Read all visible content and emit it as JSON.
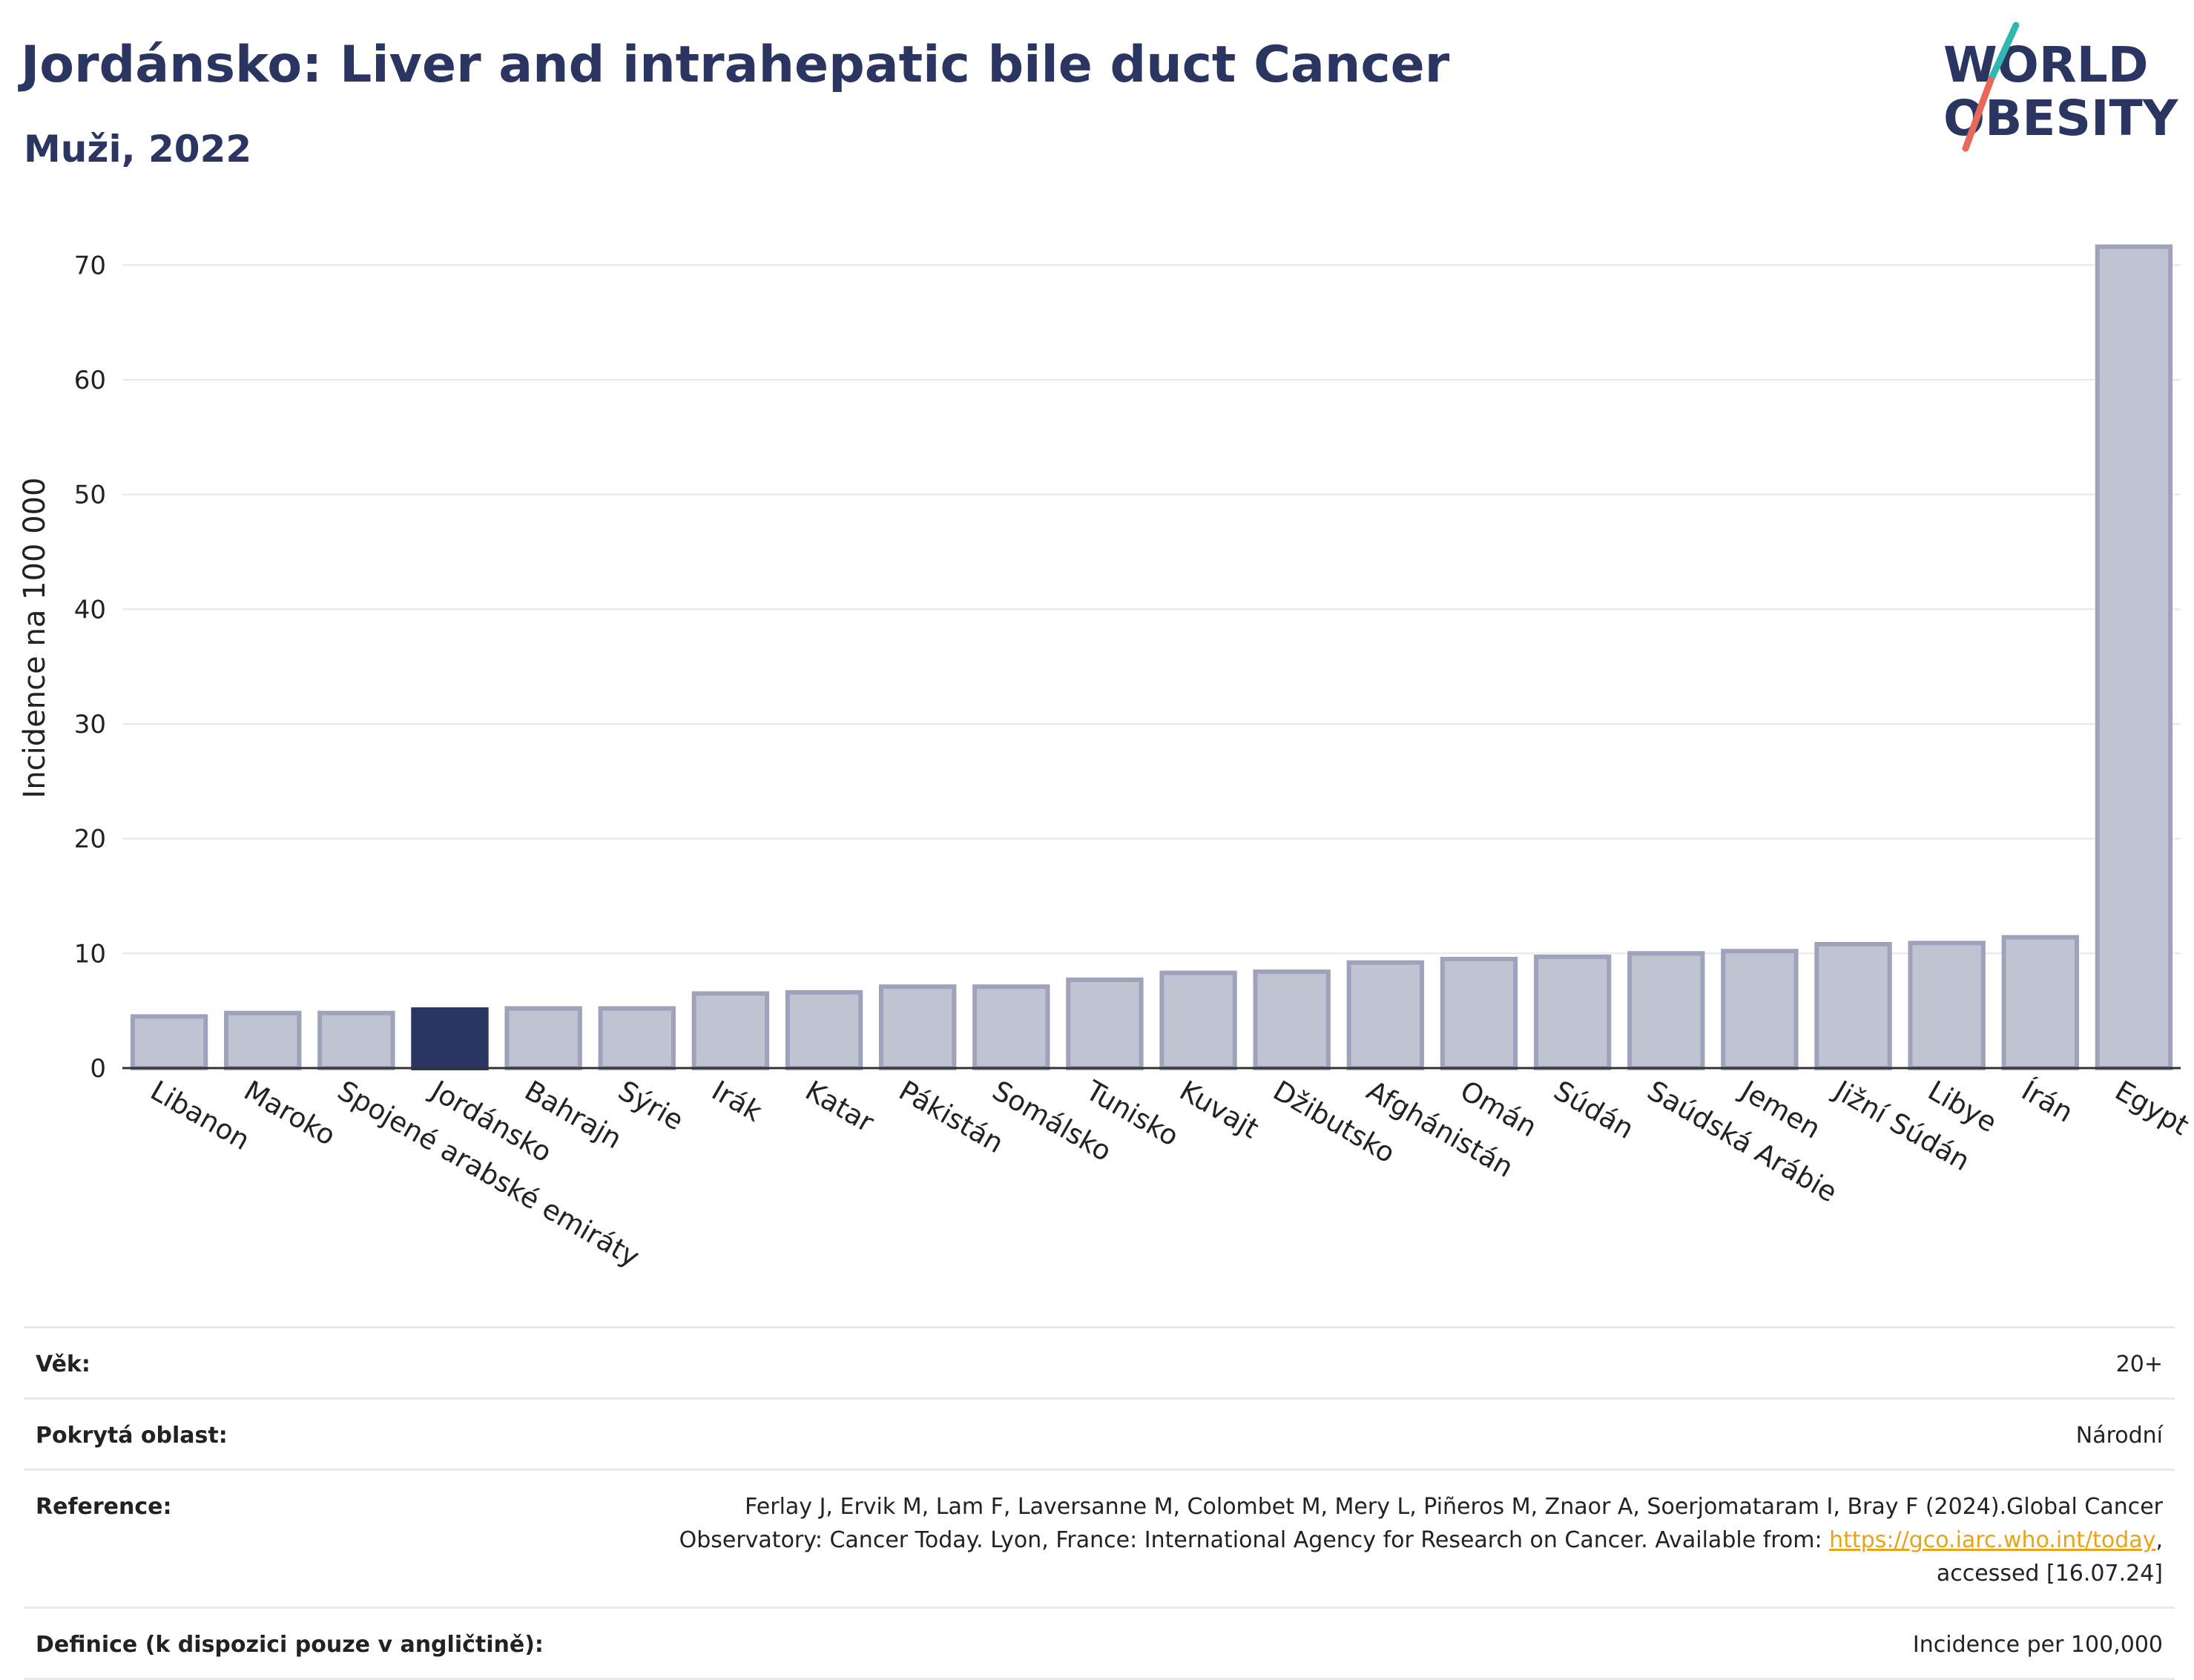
{
  "header": {
    "title": "Jordánsko: Liver and intrahepatic bile duct Cancer",
    "subtitle": "Muži, 2022"
  },
  "logo": {
    "line1": "WORLD",
    "line2": "OBESITY",
    "accent_teal": "#2fb8b0",
    "accent_red": "#e8685a",
    "text_color": "#2b3561"
  },
  "chart_data": {
    "type": "bar",
    "ylabel": "Incidence na 100 000",
    "ylim": [
      0,
      75
    ],
    "yticks": [
      0,
      10,
      20,
      30,
      40,
      50,
      60,
      70
    ],
    "grid": true,
    "highlight": "Jordánsko",
    "bar_color": "#c0c3d1",
    "bar_border_color": "#9ea3bb",
    "highlight_color": "#2b3561",
    "categories": [
      "Libanon",
      "Maroko",
      "Spojené arabské emiráty",
      "Jordánsko",
      "Bahrajn",
      "Sýrie",
      "Irák",
      "Katar",
      "Pákistán",
      "Somálsko",
      "Tunisko",
      "Kuvajt",
      "Džibutsko",
      "Afghánistán",
      "Omán",
      "Súdán",
      "Saúdská Arábie",
      "Jemen",
      "Jižní Súdán",
      "Libye",
      "Írán",
      "Egypt"
    ],
    "values": [
      4.5,
      4.8,
      4.8,
      5.1,
      5.2,
      5.2,
      6.5,
      6.6,
      7.1,
      7.1,
      7.7,
      8.3,
      8.4,
      9.2,
      9.5,
      9.7,
      10.0,
      10.2,
      10.8,
      10.9,
      11.4,
      71.6
    ]
  },
  "info": {
    "rows": [
      {
        "label": "Věk:",
        "value": "20+"
      },
      {
        "label": "Pokrytá oblast:",
        "value": "Národní"
      },
      {
        "label": "Reference:",
        "value_before": "Ferlay J, Ervik M, Lam F, Laversanne M, Colombet M, Mery L, Piñeros M, Znaor A, Soerjomataram I, Bray F (2024).Global Cancer Observatory: Cancer Today. Lyon, France: International Agency for Research on Cancer. Available from: ",
        "link": "https://gco.iarc.who.int/today",
        "value_after": ", accessed [16.07.24]"
      },
      {
        "label": "Definice (k dispozici pouze v angličtině):",
        "value": "Incidence per 100,000"
      }
    ]
  }
}
